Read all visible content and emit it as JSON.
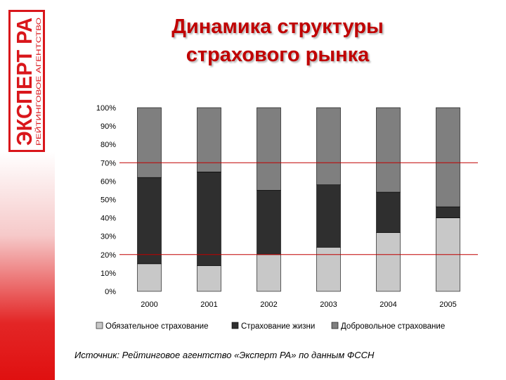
{
  "title_lines": [
    "Динамика структуры",
    "страхового рынка"
  ],
  "logo": {
    "main": "ЭКСПЕРТ РА",
    "sub": "РЕЙТИНГОВОЕ АГЕНТСТВО",
    "color": "#d9161b"
  },
  "source": "Источник: Рейтинговое агентство «Эксперт РА» по данным ФССН",
  "colors": {
    "title": "#c00000",
    "reference_line": "#c00000",
    "accent_band": "#e01010"
  },
  "chart_data": {
    "type": "bar",
    "stacked": true,
    "categories": [
      "2000",
      "2001",
      "2002",
      "2003",
      "2004",
      "2005"
    ],
    "y_tick_labels": [
      "0%",
      "10%",
      "20%",
      "30%",
      "40%",
      "50%",
      "60%",
      "70%",
      "80%",
      "90%",
      "100%"
    ],
    "ylim": [
      0,
      100
    ],
    "y_unit": "%",
    "reference_lines": [
      20,
      70
    ],
    "grid": false,
    "legend_position": "bottom",
    "series": [
      {
        "name": "Обязательное страхование",
        "values": [
          15,
          14,
          20,
          24,
          32,
          40
        ],
        "color": "#c8c8c8"
      },
      {
        "name": "Страхование жизни",
        "values": [
          47,
          51,
          35,
          34,
          22,
          6
        ],
        "color": "#2f2f2f"
      },
      {
        "name": "Добровольное страхование",
        "values": [
          38,
          35,
          45,
          42,
          46,
          54
        ],
        "color": "#7f7f7f"
      }
    ]
  }
}
